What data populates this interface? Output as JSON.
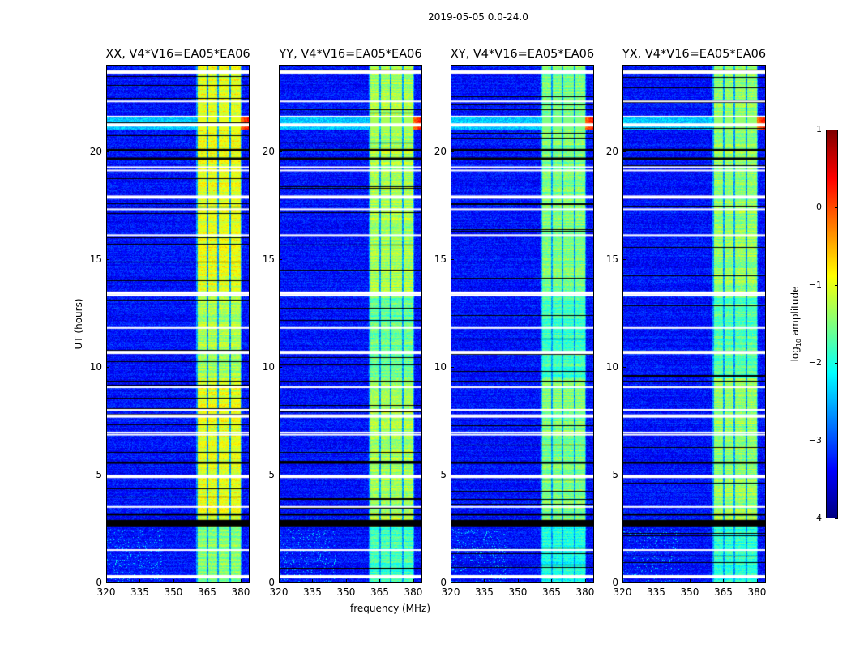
{
  "chart_data": {
    "type": "heatmap",
    "title": "2019-05-05 0.0-24.0",
    "xlabel": "frequency (MHz)",
    "ylabel": "UT (hours)",
    "xlim": [
      320,
      384
    ],
    "ylim": [
      0,
      24
    ],
    "xticks": [
      320,
      335,
      350,
      365,
      380
    ],
    "yticks": [
      0,
      5,
      10,
      15,
      20
    ],
    "panels": [
      {
        "title": "XX, V4*V16=EA05*EA06",
        "band_level": -1.0
      },
      {
        "title": "YY, V4*V16=EA05*EA06",
        "band_level": -1.3
      },
      {
        "title": "XY, V4*V16=EA05*EA06",
        "band_level": -1.5
      },
      {
        "title": "YX, V4*V16=EA05*EA06",
        "band_level": -1.4
      }
    ],
    "bright_bands_mhz": [
      [
        360.5,
        364.6
      ],
      [
        365.4,
        369.2
      ],
      [
        370.0,
        374.6
      ],
      [
        375.4,
        380.0
      ]
    ],
    "background_level": -3.3,
    "flagged_rows_hours": [
      23.7,
      22.3,
      21.6,
      21.25,
      19.25,
      19.1,
      17.9,
      17.3,
      16.1,
      13.45,
      13.3,
      11.8,
      10.7,
      9.05,
      8.0,
      7.75,
      6.95,
      6.85,
      4.95,
      3.5,
      1.5,
      0.3
    ],
    "blank_rows_hours": [
      [
        2.6,
        2.9
      ],
      [
        19.6,
        19.7
      ],
      [
        20.0,
        20.1
      ],
      [
        9.3,
        9.35
      ],
      [
        5.5,
        5.6
      ],
      [
        3.1,
        3.2
      ]
    ],
    "rfi_event_hours": [
      21.0,
      21.6
    ],
    "colorbar": {
      "label": "log10 amplitude",
      "label_main": "log",
      "label_sub": "10",
      "label_rest": " amplitude",
      "range": [
        -4,
        1
      ],
      "ticks": [
        "1",
        "0",
        "−1",
        "−2",
        "−3",
        "−4"
      ],
      "tick_values": [
        1,
        0,
        -1,
        -2,
        -3,
        -4
      ],
      "colormap": "jet"
    }
  }
}
